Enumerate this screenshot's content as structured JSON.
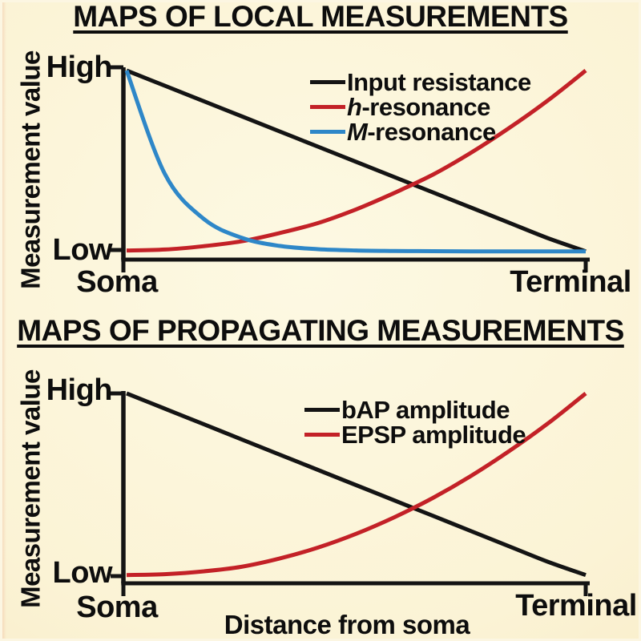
{
  "colors": {
    "background_center": "#FDF9E3",
    "background_edge": "#F3DEB0",
    "axis_black": "#141414",
    "text_black": "#0d0d0d",
    "line_red": "#C32127",
    "line_blue": "#2E87C8"
  },
  "chart_data": [
    {
      "type": "line",
      "title": "MAPS OF LOCAL MEASUREMENTS",
      "ylabel": "Measurement value",
      "xlabel": "",
      "x_tick_labels": [
        "Soma",
        "Terminal"
      ],
      "y_tick_labels": {
        "high": "High",
        "low": "Low"
      },
      "grid": false,
      "legend_position": "upper right inside plot",
      "x_axis_meaning": "distance from soma, normalized 0 (Soma) to 1 (Terminal)",
      "y_axis_meaning": "measurement value, normalized 0 (Low) to 1 (High)",
      "x_normalized": [
        0,
        0.083,
        0.167,
        0.25,
        0.333,
        0.417,
        0.5,
        0.583,
        0.667,
        0.75,
        0.833,
        0.917,
        1
      ],
      "series": [
        {
          "name": "Input resistance",
          "legend_italic_prefix": "",
          "legend_label": "Input resistance",
          "color": "#141414",
          "trend": "linear decrease from High at Soma to Low at Terminal",
          "values": [
            1,
            0.917,
            0.833,
            0.75,
            0.667,
            0.583,
            0.5,
            0.417,
            0.333,
            0.25,
            0.167,
            0.083,
            0.01
          ]
        },
        {
          "name": "h-resonance",
          "legend_italic_prefix": "h",
          "legend_label": "-resonance",
          "color": "#C32127",
          "trend": "exponential-like increase from Low at Soma to High at Terminal",
          "values": [
            0.015,
            0.02,
            0.038,
            0.065,
            0.11,
            0.165,
            0.24,
            0.33,
            0.43,
            0.55,
            0.685,
            0.835,
            1
          ]
        },
        {
          "name": "M-resonance",
          "legend_italic_prefix": "M",
          "legend_label": "-resonance",
          "color": "#2E87C8",
          "trend": "steep exponential decrease from High at Soma to Low plateau toward Terminal",
          "values": [
            1,
            0.435,
            0.19,
            0.085,
            0.04,
            0.022,
            0.015,
            0.012,
            0.011,
            0.01,
            0.01,
            0.01,
            0.01
          ]
        }
      ]
    },
    {
      "type": "line",
      "title": "MAPS OF PROPAGATING MEASUREMENTS",
      "ylabel": "Measurement value",
      "xlabel": "Distance from soma",
      "x_tick_labels": [
        "Soma",
        "Terminal"
      ],
      "y_tick_labels": {
        "high": "High",
        "low": "Low"
      },
      "grid": false,
      "legend_position": "upper right inside plot",
      "x_axis_meaning": "distance from soma, normalized 0 (Soma) to 1 (Terminal)",
      "y_axis_meaning": "measurement value, normalized 0 (Low) to 1 (High)",
      "x_normalized": [
        0,
        0.083,
        0.167,
        0.25,
        0.333,
        0.417,
        0.5,
        0.583,
        0.667,
        0.75,
        0.833,
        0.917,
        1
      ],
      "series": [
        {
          "name": "bAP amplitude",
          "legend_italic_prefix": "",
          "legend_label": "bAP amplitude",
          "color": "#141414",
          "trend": "linear decrease from High at Soma to Low at Terminal",
          "values": [
            1,
            0.917,
            0.833,
            0.75,
            0.667,
            0.583,
            0.5,
            0.417,
            0.333,
            0.25,
            0.167,
            0.083,
            0.01
          ]
        },
        {
          "name": "EPSP amplitude",
          "legend_italic_prefix": "",
          "legend_label": "EPSP amplitude",
          "color": "#C32127",
          "trend": "exponential-like increase from Low at Soma to High at Terminal",
          "values": [
            0.01,
            0.015,
            0.03,
            0.055,
            0.1,
            0.16,
            0.235,
            0.325,
            0.43,
            0.55,
            0.685,
            0.835,
            1
          ]
        }
      ]
    }
  ]
}
